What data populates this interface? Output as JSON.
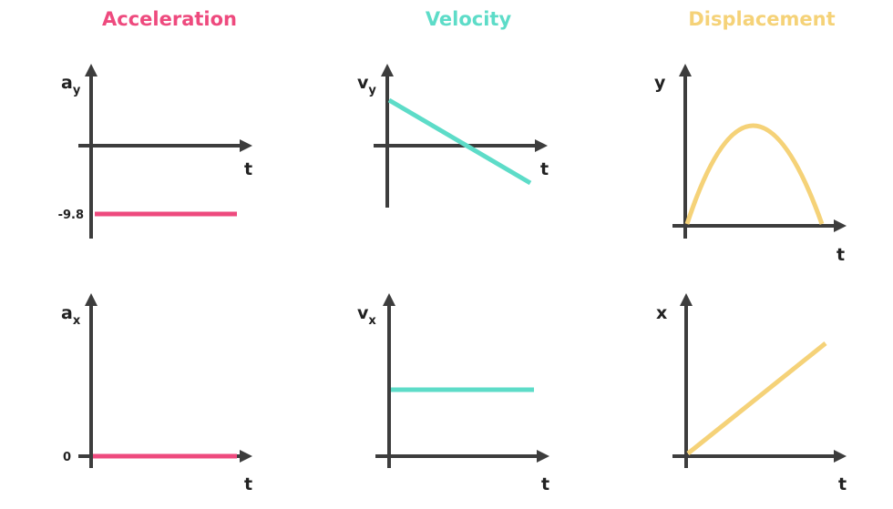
{
  "columns": [
    {
      "title": "Acceleration",
      "color": "#ee4a7e"
    },
    {
      "title": "Velocity",
      "color": "#5ddcc8"
    },
    {
      "title": "Displacement",
      "color": "#f5d278"
    }
  ],
  "axis_color": "#3d3d3d",
  "chart_data": [
    {
      "type": "line",
      "panel": "acceleration-y",
      "ylabel": {
        "main": "a",
        "sub": "y"
      },
      "xlabel": "t",
      "y_ticks": [
        "-9.8"
      ],
      "series": [
        {
          "x": [
            0,
            1
          ],
          "y": [
            -9.8,
            -9.8
          ]
        }
      ],
      "grid": false
    },
    {
      "type": "line",
      "panel": "velocity-y",
      "ylabel": {
        "main": "v",
        "sub": "y"
      },
      "xlabel": "t",
      "series": [
        {
          "x": [
            0,
            1
          ],
          "y": [
            1,
            -0.8
          ]
        }
      ],
      "grid": false
    },
    {
      "type": "line",
      "panel": "displacement-y",
      "ylabel": {
        "main": "y",
        "sub": ""
      },
      "xlabel": "t",
      "series": [
        {
          "shape": "parabola",
          "x": [
            0,
            0.5,
            1
          ],
          "y": [
            0,
            1,
            0
          ]
        }
      ],
      "grid": false
    },
    {
      "type": "line",
      "panel": "acceleration-x",
      "ylabel": {
        "main": "a",
        "sub": "x"
      },
      "xlabel": "t",
      "y_ticks": [
        "0"
      ],
      "series": [
        {
          "x": [
            0,
            1
          ],
          "y": [
            0,
            0
          ]
        }
      ],
      "grid": false
    },
    {
      "type": "line",
      "panel": "velocity-x",
      "ylabel": {
        "main": "v",
        "sub": "x"
      },
      "xlabel": "t",
      "series": [
        {
          "x": [
            0,
            1
          ],
          "y": [
            1,
            1
          ]
        }
      ],
      "grid": false
    },
    {
      "type": "line",
      "panel": "displacement-x",
      "ylabel": {
        "main": "x",
        "sub": ""
      },
      "xlabel": "t",
      "series": [
        {
          "x": [
            0,
            1
          ],
          "y": [
            0,
            1
          ]
        }
      ],
      "grid": false
    }
  ]
}
